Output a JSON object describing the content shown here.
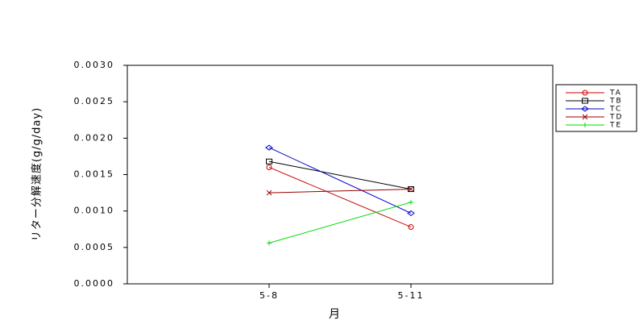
{
  "chart_data": {
    "type": "line",
    "categories": [
      "5-8",
      "5-11"
    ],
    "xlabel": "月",
    "ylabel": "リター分解速度(g/g/day)",
    "ylim": [
      0,
      0.003
    ],
    "yticks": [
      {
        "value": 0,
        "label": "0.0000"
      },
      {
        "value": 0.0005,
        "label": "0.0005"
      },
      {
        "value": 0.001,
        "label": "0.0010"
      },
      {
        "value": 0.0015,
        "label": "0.0015"
      },
      {
        "value": 0.002,
        "label": "0.0020"
      },
      {
        "value": 0.0025,
        "label": "0.0025"
      },
      {
        "value": 0.003,
        "label": "0.0030"
      }
    ],
    "legend": "right",
    "series": [
      {
        "name": "TA",
        "color": "#cc0000",
        "marker": "circle",
        "values": [
          0.0016,
          0.00078
        ]
      },
      {
        "name": "TB",
        "color": "#000000",
        "marker": "square",
        "values": [
          0.00168,
          0.0013
        ]
      },
      {
        "name": "TC",
        "color": "#0000cc",
        "marker": "diamond",
        "values": [
          0.00187,
          0.00097
        ]
      },
      {
        "name": "TD",
        "color": "#990000",
        "marker": "x",
        "values": [
          0.00125,
          0.0013
        ]
      },
      {
        "name": "TE",
        "color": "#00dd00",
        "marker": "plus",
        "values": [
          0.00056,
          0.00112
        ]
      }
    ]
  }
}
